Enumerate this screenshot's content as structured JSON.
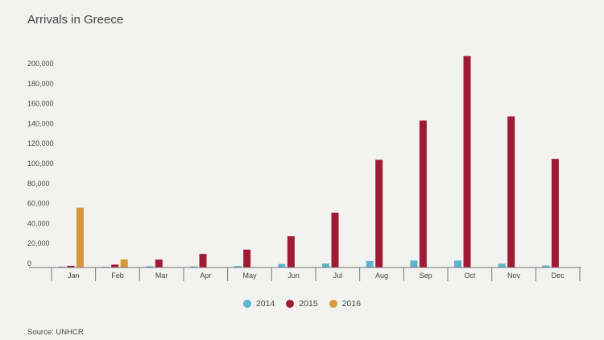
{
  "title": "Arrivals in Greece",
  "source": "Source: UNHCR",
  "chart_data": {
    "type": "bar",
    "title": "Arrivals in Greece",
    "xlabel": "",
    "ylabel": "",
    "ylim": [
      0,
      210000
    ],
    "yticks": [
      0,
      20000,
      40000,
      60000,
      80000,
      100000,
      120000,
      140000,
      160000,
      180000,
      200000
    ],
    "ytick_labels": [
      "0",
      "20,000",
      "40,000",
      "60,000",
      "80,000",
      "100,000",
      "120,000",
      "140,000",
      "160,000",
      "180,000",
      "200,000"
    ],
    "categories": [
      "Jan",
      "Feb",
      "Mar",
      "Apr",
      "May",
      "Jun",
      "Jul",
      "Aug",
      "Sep",
      "Oct",
      "Nov",
      "Dec"
    ],
    "series": [
      {
        "name": "2014",
        "color": "#5bb5cd",
        "values": [
          900,
          800,
          1200,
          1100,
          1500,
          3500,
          4000,
          6500,
          7000,
          7000,
          3800,
          2000
        ]
      },
      {
        "name": "2015",
        "color": "#9e1b34",
        "values": [
          1700,
          2900,
          7900,
          13600,
          17900,
          31300,
          54900,
          107800,
          147100,
          211700,
          151200,
          108700
        ]
      },
      {
        "name": "2016",
        "color": "#d9963a",
        "values": [
          60000,
          8000,
          null,
          null,
          null,
          null,
          null,
          null,
          null,
          null,
          null,
          null
        ]
      }
    ],
    "legend_position": "bottom-center",
    "grid": false
  }
}
